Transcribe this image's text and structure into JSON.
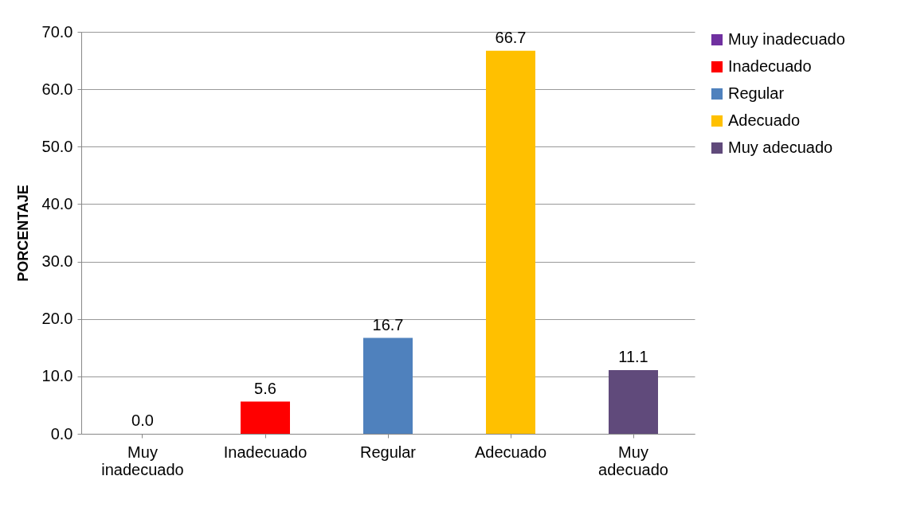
{
  "chart_data": {
    "type": "bar",
    "ylabel": "PORCENTAJE",
    "categories": [
      "Muy inadecuado",
      "Inadecuado",
      "Regular",
      "Adecuado",
      "Muy adecuado"
    ],
    "series": [
      {
        "name": "Muy inadecuado",
        "color": "#7030a0",
        "values": [
          0.0,
          null,
          null,
          null,
          null
        ],
        "value_labels": [
          "0.0",
          null,
          null,
          null,
          null
        ]
      },
      {
        "name": "Inadecuado",
        "color": "#ff0000",
        "values": [
          null,
          5.6,
          null,
          null,
          null
        ],
        "value_labels": [
          null,
          "5.6",
          null,
          null,
          null
        ]
      },
      {
        "name": "Regular",
        "color": "#4f81bd",
        "values": [
          null,
          null,
          16.7,
          null,
          null
        ],
        "value_labels": [
          null,
          null,
          "16.7",
          null,
          null
        ]
      },
      {
        "name": "Adecuado",
        "color": "#ffc000",
        "values": [
          null,
          null,
          null,
          66.7,
          null
        ],
        "value_labels": [
          null,
          null,
          null,
          "66.7",
          null
        ]
      },
      {
        "name": "Muy adecuado",
        "color": "#604a7b",
        "values": [
          null,
          null,
          null,
          null,
          11.1
        ],
        "value_labels": [
          null,
          null,
          null,
          null,
          "11.1"
        ]
      }
    ],
    "ylim": [
      0,
      70
    ],
    "yticks": [
      {
        "value": 0,
        "label": "0.0"
      },
      {
        "value": 10,
        "label": "10.0"
      },
      {
        "value": 20,
        "label": "20.0"
      },
      {
        "value": 30,
        "label": "30.0"
      },
      {
        "value": 40,
        "label": "40.0"
      },
      {
        "value": 50,
        "label": "50.0"
      },
      {
        "value": 60,
        "label": "60.0"
      },
      {
        "value": 70,
        "label": "70.0"
      }
    ],
    "grid": "y",
    "legend": "right"
  }
}
